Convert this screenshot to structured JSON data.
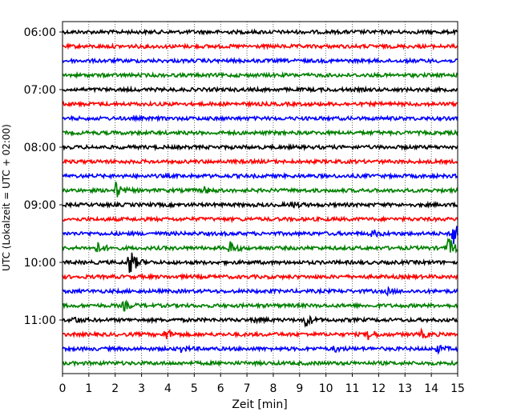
{
  "chart_data": {
    "type": "line",
    "title": "",
    "xlabel": "Zeit  [min]",
    "ylabel": "UTC (Lokalzeit = UTC + 02:00)",
    "xlim": [
      0,
      15
    ],
    "x_ticks": [
      "0",
      "1",
      "2",
      "3",
      "4",
      "5",
      "6",
      "7",
      "8",
      "9",
      "10",
      "11",
      "12",
      "13",
      "14",
      "15"
    ],
    "y_tick_labels": [
      "06:00",
      "07:00",
      "08:00",
      "09:00",
      "10:00",
      "11:00"
    ],
    "y_tick_rows": [
      0,
      4,
      8,
      12,
      16,
      20
    ],
    "grid": "vertical dotted lines at each minute",
    "row_colors": [
      "#000000",
      "#ff0000",
      "#0000ff",
      "#008000"
    ],
    "row_start_labels": [
      "06:00",
      "06:15",
      "06:30",
      "06:45",
      "07:00",
      "07:15",
      "07:30",
      "07:45",
      "08:00",
      "08:15",
      "08:30",
      "08:45",
      "09:00",
      "09:15",
      "09:30",
      "09:45",
      "10:00",
      "10:15",
      "10:30",
      "10:45",
      "11:00",
      "11:15",
      "11:30",
      "11:45"
    ],
    "rows": 24,
    "row_minutes": 15,
    "events": [
      {
        "row": 11,
        "minute": 2.0,
        "amplitude": 0.6
      },
      {
        "row": 11,
        "minute": 5.3,
        "amplitude": 0.3
      },
      {
        "row": 12,
        "minute": 8.7,
        "amplitude": 0.25
      },
      {
        "row": 14,
        "minute": 11.7,
        "amplitude": 0.3
      },
      {
        "row": 14,
        "minute": 14.8,
        "amplitude": 1.4
      },
      {
        "row": 15,
        "minute": 1.3,
        "amplitude": 0.4
      },
      {
        "row": 15,
        "minute": 6.3,
        "amplitude": 0.5
      },
      {
        "row": 15,
        "minute": 14.6,
        "amplitude": 0.9
      },
      {
        "row": 16,
        "minute": 2.5,
        "amplitude": 1.2
      },
      {
        "row": 18,
        "minute": 12.3,
        "amplitude": 0.2
      },
      {
        "row": 19,
        "minute": 2.3,
        "amplitude": 0.35
      },
      {
        "row": 20,
        "minute": 0.4,
        "amplitude": 0.25
      },
      {
        "row": 20,
        "minute": 7.3,
        "amplitude": 0.2
      },
      {
        "row": 20,
        "minute": 9.2,
        "amplitude": 0.5
      },
      {
        "row": 21,
        "minute": 3.9,
        "amplitude": 0.4
      },
      {
        "row": 21,
        "minute": 11.6,
        "amplitude": 0.4
      },
      {
        "row": 21,
        "minute": 13.6,
        "amplitude": 0.25
      },
      {
        "row": 22,
        "minute": 4.5,
        "amplitude": 0.2
      },
      {
        "row": 22,
        "minute": 10.3,
        "amplitude": 0.2
      },
      {
        "row": 22,
        "minute": 14.2,
        "amplitude": 0.25
      }
    ]
  }
}
